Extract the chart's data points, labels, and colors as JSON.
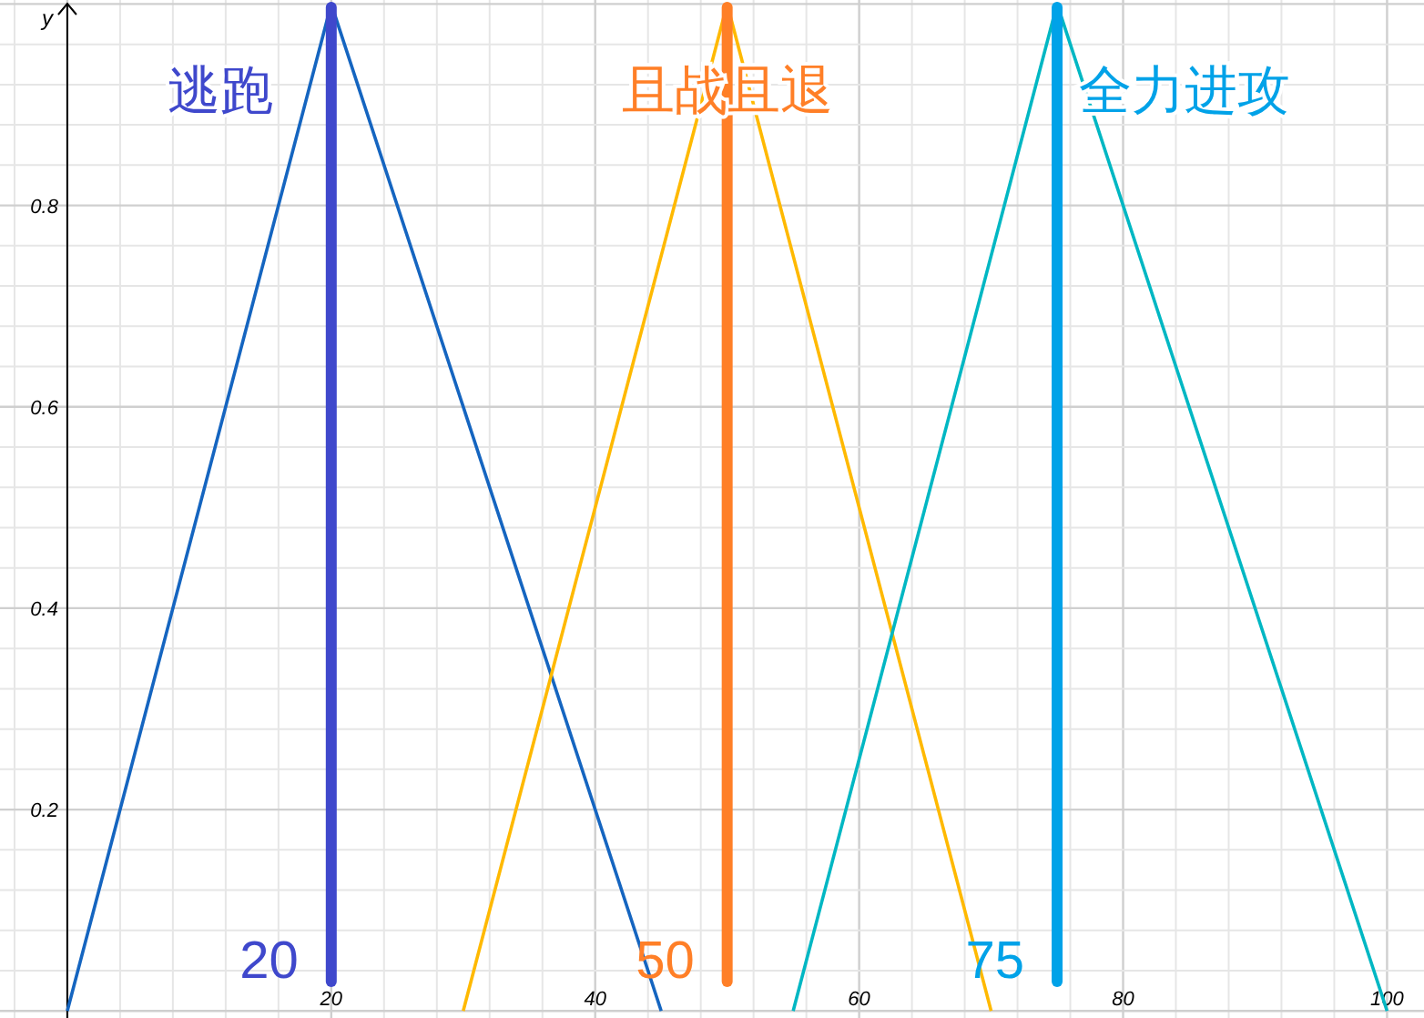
{
  "chart_data": {
    "type": "line",
    "ylabel": "y",
    "xlim": [
      -5.1,
      102.8
    ],
    "ylim": [
      -0.007,
      1.004
    ],
    "xticks": [
      20,
      40,
      60,
      80,
      100
    ],
    "yticks": [
      0.2,
      0.4,
      0.6,
      0.8
    ],
    "grid": true,
    "marker": "none",
    "line_style": "solid",
    "series": [
      {
        "color": "#1565c0",
        "x": [
          0,
          20,
          45
        ],
        "values": [
          0,
          1,
          0
        ]
      },
      {
        "color": "#ffb900",
        "x": [
          30,
          50,
          70
        ],
        "values": [
          0,
          1,
          0
        ]
      },
      {
        "color": "#00b7c3",
        "x": [
          55,
          75,
          100
        ],
        "values": [
          0,
          1,
          0
        ]
      }
    ],
    "ref_lines": [
      {
        "axis": "x",
        "value": 20,
        "label": "20",
        "color": "#3f48cc",
        "line_style": "solid"
      },
      {
        "axis": "x",
        "value": 50,
        "label": "50",
        "color": "#ff7f27",
        "line_style": "solid"
      },
      {
        "axis": "x",
        "value": 75,
        "label": "75",
        "color": "#00a2e8",
        "line_style": "solid"
      }
    ],
    "annotations": [
      "逃跑",
      "且战且退",
      "全力进攻"
    ]
  }
}
